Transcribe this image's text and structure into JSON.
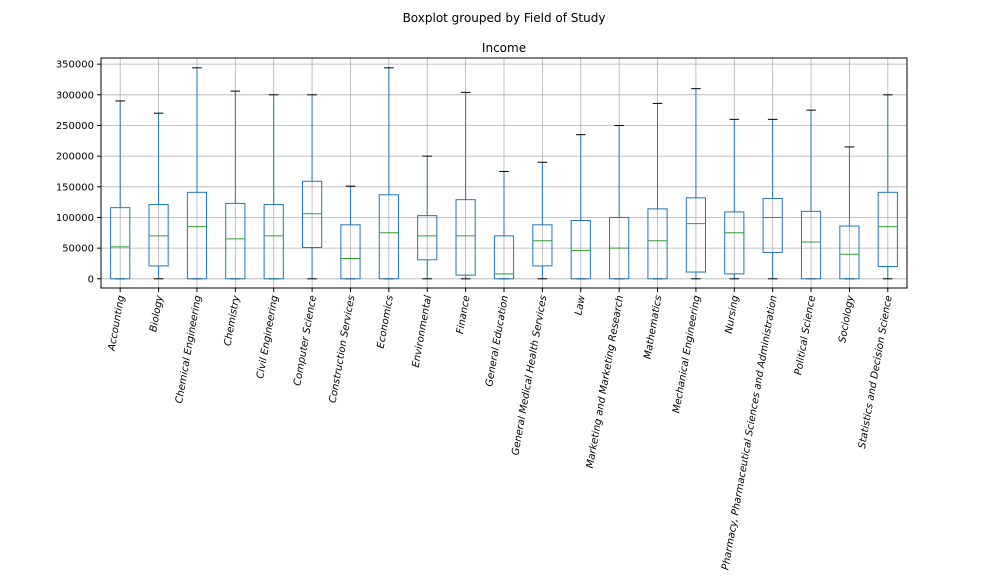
{
  "chart_data": {
    "type": "boxplot",
    "suptitle": "Boxplot grouped by Field of Study",
    "title": "Income",
    "xlabel": "",
    "ylabel": "",
    "ylim": [
      -15000,
      360000
    ],
    "yticks": [
      0,
      50000,
      100000,
      150000,
      200000,
      250000,
      300000,
      350000
    ],
    "ytick_labels": [
      "0",
      "50000",
      "100000",
      "150000",
      "200000",
      "250000",
      "300000",
      "350000"
    ],
    "grid": true,
    "colors": {
      "box": "#1f77b4",
      "median": "#2ca02c",
      "whisker": "#1f77b4",
      "cap": "#000000",
      "grid": "#b0b0b0"
    },
    "categories": [
      "Accounting",
      "Biology",
      "Chemical Engineering",
      "Chemistry",
      "Civil Engineering",
      "Computer Science",
      "Construction Services",
      "Economics",
      "Environmental",
      "Finance",
      "General Education",
      "General Medical Health Services",
      "Law",
      "Marketing and Marketing Research",
      "Mathematics",
      "Mechanical Engineering",
      "Nursing",
      "Pharmacy, Pharmaceutical Sciences and Administration",
      "Political Science",
      "Sociology",
      "Statistics and Decision Science"
    ],
    "boxes": [
      {
        "whislo": 0,
        "q1": 0,
        "med": 52000,
        "q3": 116000,
        "whishi": 290000
      },
      {
        "whislo": 0,
        "q1": 21000,
        "med": 70000,
        "q3": 121000,
        "whishi": 270000
      },
      {
        "whislo": 0,
        "q1": 0,
        "med": 85000,
        "q3": 141000,
        "whishi": 344000
      },
      {
        "whislo": 0,
        "q1": 0,
        "med": 65000,
        "q3": 123000,
        "whishi": 306000
      },
      {
        "whislo": 0,
        "q1": 0,
        "med": 70000,
        "q3": 121000,
        "whishi": 300000
      },
      {
        "whislo": 0,
        "q1": 51000,
        "med": 106000,
        "q3": 159000,
        "whishi": 300000
      },
      {
        "whislo": 0,
        "q1": 0,
        "med": 33000,
        "q3": 88000,
        "whishi": 151000
      },
      {
        "whislo": 0,
        "q1": 0,
        "med": 75000,
        "q3": 137000,
        "whishi": 344000
      },
      {
        "whislo": 0,
        "q1": 31000,
        "med": 70000,
        "q3": 103000,
        "whishi": 200000
      },
      {
        "whislo": 0,
        "q1": 6000,
        "med": 70000,
        "q3": 129000,
        "whishi": 304000
      },
      {
        "whislo": 0,
        "q1": 0,
        "med": 8000,
        "q3": 70000,
        "whishi": 175000
      },
      {
        "whislo": 0,
        "q1": 21000,
        "med": 62000,
        "q3": 88000,
        "whishi": 190000
      },
      {
        "whislo": 0,
        "q1": 0,
        "med": 46000,
        "q3": 95000,
        "whishi": 235000
      },
      {
        "whislo": 0,
        "q1": 0,
        "med": 50000,
        "q3": 100000,
        "whishi": 250000
      },
      {
        "whislo": 0,
        "q1": 0,
        "med": 62000,
        "q3": 114000,
        "whishi": 286000
      },
      {
        "whislo": 0,
        "q1": 11000,
        "med": 90000,
        "q3": 132000,
        "whishi": 310000
      },
      {
        "whislo": 0,
        "q1": 8000,
        "med": 75000,
        "q3": 109000,
        "whishi": 260000
      },
      {
        "whislo": 0,
        "q1": 43000,
        "med": 100000,
        "q3": 131000,
        "whishi": 260000
      },
      {
        "whislo": 0,
        "q1": 0,
        "med": 60000,
        "q3": 110000,
        "whishi": 275000
      },
      {
        "whislo": 0,
        "q1": 0,
        "med": 40000,
        "q3": 86000,
        "whishi": 215000
      },
      {
        "whislo": 0,
        "q1": 20000,
        "med": 85000,
        "q3": 141000,
        "whishi": 300000
      }
    ]
  }
}
